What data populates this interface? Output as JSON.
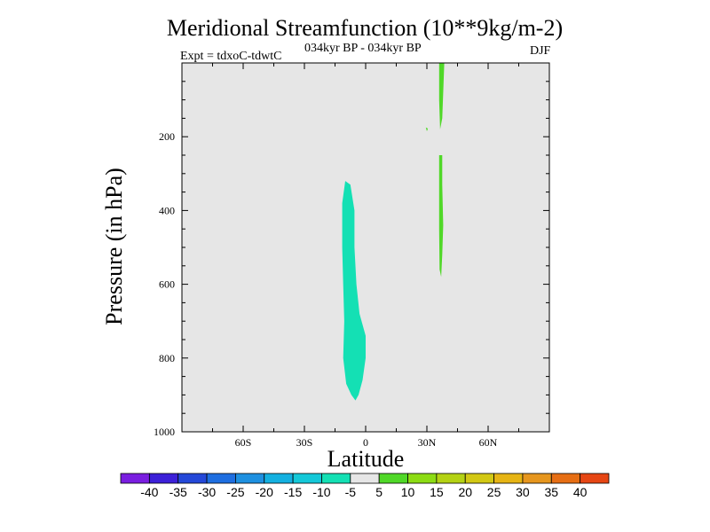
{
  "chart_data": {
    "type": "heatmap",
    "title": "Meridional Streamfunction (10**9kg/m-2)",
    "subtitle": "034kyr BP - 034kyr BP",
    "expt_label": "Expt = tdxoC-tdwtC",
    "season": "DJF",
    "xlabel": "Latitude",
    "ylabel": "Pressure (in hPa)",
    "x_range": [
      -90,
      90
    ],
    "y_range": [
      1000,
      0
    ],
    "y_scale": "linear, reversed",
    "x_ticks": [
      -60,
      -30,
      0,
      30,
      60
    ],
    "x_tick_labels": [
      "60S",
      "30S",
      "0",
      "30N",
      "60N"
    ],
    "y_ticks": [
      200,
      400,
      600,
      800,
      1000
    ],
    "y_tick_labels": [
      "200",
      "400",
      "600",
      "800",
      "1000"
    ],
    "background_color": "#e6e6e6",
    "colorbar": {
      "labels": [
        "-40",
        "-35",
        "-30",
        "-25",
        "-20",
        "-15",
        "-10",
        "-5",
        "5",
        "10",
        "15",
        "20",
        "25",
        "30",
        "35",
        "40"
      ],
      "colors": [
        "#7a1ee0",
        "#3c20d8",
        "#2448d8",
        "#1e6ee0",
        "#1e90e0",
        "#14b0e0",
        "#14c8d8",
        "#14e0b4",
        "#e6e6e6",
        "#50d828",
        "#8cdc14",
        "#b4d214",
        "#d2c814",
        "#e6b414",
        "#e6961e",
        "#e66e14",
        "#e64614"
      ]
    },
    "regions": [
      {
        "name": "negative-region",
        "color": "#14e0b4",
        "bin": "-10 to -5",
        "outline": [
          [
            -10,
            320
          ],
          [
            -7.5,
            330
          ],
          [
            -5.5,
            400
          ],
          [
            -5.5,
            500
          ],
          [
            -4.5,
            600
          ],
          [
            -3,
            680
          ],
          [
            0,
            740
          ],
          [
            0,
            800
          ],
          [
            -1.5,
            860
          ],
          [
            -3.5,
            900
          ],
          [
            -5,
            915
          ],
          [
            -7,
            900
          ],
          [
            -9.5,
            870
          ],
          [
            -11,
            800
          ],
          [
            -10.5,
            700
          ],
          [
            -11,
            600
          ],
          [
            -11.5,
            500
          ],
          [
            -11.5,
            380
          ]
        ]
      },
      {
        "name": "positive-region-upper",
        "color": "#50d828",
        "bin": "5 to 10",
        "outline": [
          [
            36,
            0
          ],
          [
            38.5,
            0
          ],
          [
            38,
            80
          ],
          [
            37.5,
            150
          ],
          [
            36.5,
            180
          ],
          [
            36,
            100
          ]
        ]
      },
      {
        "name": "positive-region-lower",
        "color": "#50d828",
        "bin": "5 to 10",
        "outline": [
          [
            36,
            250
          ],
          [
            37.5,
            250
          ],
          [
            37.5,
            330
          ],
          [
            38,
            440
          ],
          [
            37.5,
            520
          ],
          [
            37,
            580
          ],
          [
            36.2,
            560
          ],
          [
            36,
            450
          ],
          [
            36,
            330
          ]
        ]
      },
      {
        "name": "positive-speck",
        "color": "#50d828",
        "bin": "5 to 10",
        "outline": [
          [
            29.5,
            175
          ],
          [
            30.5,
            178
          ],
          [
            30,
            185
          ]
        ]
      }
    ]
  }
}
